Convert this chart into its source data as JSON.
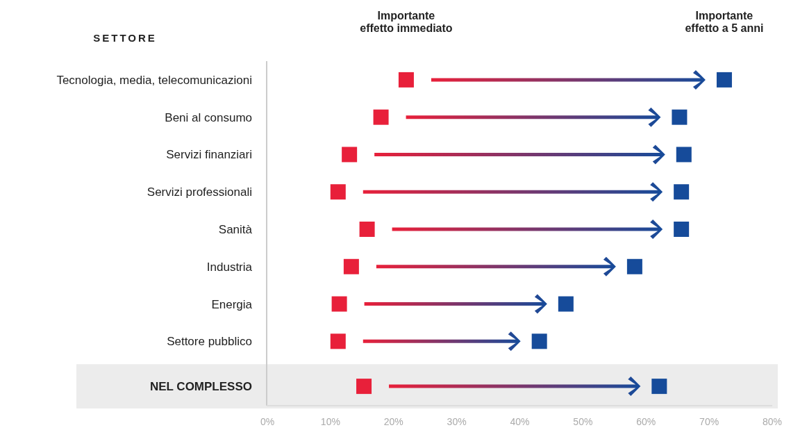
{
  "chart_data": {
    "type": "scatter",
    "orientation": "horizontal",
    "ylabel": "SETTORE",
    "categories": [
      "Tecnologia, media, telecomunicazioni",
      "Beni al consumo",
      "Servizi finanziari",
      "Servizi professionali",
      "Sanità",
      "Industria",
      "Energia",
      "Settore pubblico",
      "NEL COMPLESSO"
    ],
    "series": [
      {
        "name": "Importante effetto immediato",
        "color": "#e8203a",
        "values": [
          22,
          18,
          13,
          11.2,
          15.8,
          13.3,
          11.4,
          11.2,
          15.3
        ]
      },
      {
        "name": "Importante effetto a 5 anni",
        "color": "#164b9a",
        "values": [
          72.4,
          65.3,
          66,
          65.6,
          65.6,
          58.2,
          47.3,
          43.1,
          62.1
        ]
      }
    ],
    "xlim": [
      0,
      80
    ],
    "xticks": [
      {
        "value": 0,
        "label": "0%"
      },
      {
        "value": 10,
        "label": "10%"
      },
      {
        "value": 20,
        "label": "20%"
      },
      {
        "value": 30,
        "label": "30%"
      },
      {
        "value": 40,
        "label": "40%"
      },
      {
        "value": 50,
        "label": "50%"
      },
      {
        "value": 60,
        "label": "60%"
      },
      {
        "value": 70,
        "label": "70%"
      },
      {
        "value": 80,
        "label": "80%"
      }
    ],
    "bands": [
      {
        "axis": "y",
        "from": "NEL COMPLESSO",
        "to": "NEL COMPLESSO",
        "color": "#ececec"
      }
    ],
    "legend": "top",
    "marker": "square",
    "grid": false
  }
}
